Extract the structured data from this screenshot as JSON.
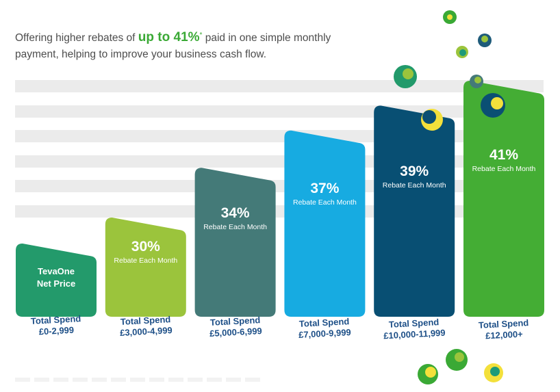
{
  "intro": {
    "text_before": "Offering higher rebates of ",
    "highlight": "up to 41%",
    "asterisk": "*",
    "text_after": " paid in one simple monthly payment, helping to improve your business cash flow."
  },
  "chart_data": {
    "type": "bar",
    "title": "",
    "xlabel": "",
    "ylabel": "",
    "categories": [
      "£0-2,999",
      "£3,000-4,999",
      "£5,000-6,999",
      "£7,000-9,999",
      "£10,000-11,999",
      "£12,000+"
    ],
    "values": [
      0,
      30,
      34,
      37,
      39,
      41
    ],
    "ylim": [
      0,
      41
    ],
    "bar_labels": [
      {
        "line1": "TevaOne",
        "line2": "Net Price"
      },
      {
        "pct": "30%",
        "sub": "Rebate Each Month"
      },
      {
        "pct": "34%",
        "sub": "Rebate Each Month"
      },
      {
        "pct": "37%",
        "sub": "Rebate Each Month"
      },
      {
        "pct": "39%",
        "sub": "Rebate Each Month"
      },
      {
        "pct": "41%",
        "sub": "Rebate Each Month"
      }
    ],
    "spend_caption": "Total Spend",
    "colors": [
      "#239a6b",
      "#9bc43c",
      "#447a78",
      "#17abe1",
      "#084f73",
      "#44ad34"
    ],
    "grid": true
  }
}
